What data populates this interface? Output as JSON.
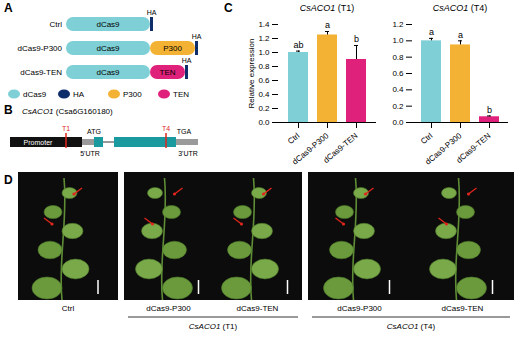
{
  "panel_labels": [
    "A",
    "B",
    "C",
    "D"
  ],
  "panel_A": {
    "constructs": [
      {
        "label": "Ctrl",
        "domains": [
          "dCas9"
        ],
        "tag": "HA"
      },
      {
        "label": "dCas9-P300",
        "domains": [
          "dCas9",
          "P300"
        ],
        "tag": "HA"
      },
      {
        "label": "dCas9-TEN",
        "domains": [
          "dCas9",
          "TEN"
        ],
        "tag": "HA"
      }
    ],
    "legend": [
      {
        "name": "dCas9",
        "color": "#7fd0d6"
      },
      {
        "name": "HA",
        "color": "#0d2d6b"
      },
      {
        "name": "P300",
        "color": "#f3b233"
      },
      {
        "name": "TEN",
        "color": "#e0217c"
      }
    ]
  },
  "panel_B": {
    "gene": "CsACO1",
    "gene_id": "(Csa6G160180)",
    "promoter": "Promoter",
    "targets": [
      "T1",
      "T4"
    ],
    "start_codon": "ATG",
    "stop_codon": "TGA",
    "utr5": "5'UTR",
    "utr3": "3'UTR"
  },
  "chart_data": [
    {
      "type": "bar",
      "title": "CsACO1 (T1)",
      "y_label": "Relative expression",
      "categories": [
        "Ctrl",
        "dCas9-P300",
        "dCas9-TEN"
      ],
      "values": [
        1.0,
        1.25,
        0.9
      ],
      "errors": [
        0.02,
        0.05,
        0.2
      ],
      "significance": [
        "ab",
        "a",
        "b"
      ],
      "colors": [
        "#7fd0d6",
        "#f3b233",
        "#e0217c"
      ],
      "ylim": [
        0,
        1.4
      ],
      "yticks": [
        {
          "value": 0,
          "label": "0.0"
        },
        0.2,
        0.4,
        0.6,
        0.8,
        {
          "value": 1,
          "label": "1.0"
        },
        1.2,
        1.4
      ]
    },
    {
      "type": "bar",
      "title": "CsACO1 (T4)",
      "categories": [
        "Ctrl",
        "dCas9-P300",
        "dCas9-TEN"
      ],
      "values": [
        1.0,
        0.95,
        0.07
      ],
      "errors": [
        0.03,
        0.05,
        0.01
      ],
      "significance": [
        "a",
        "a",
        "b"
      ],
      "colors": [
        "#7fd0d6",
        "#f3b233",
        "#e0217c"
      ],
      "ylim": [
        0,
        1.2
      ],
      "yticks": [
        {
          "value": 0,
          "label": "0.0"
        },
        0.2,
        0.4,
        0.6,
        0.8,
        {
          "value": 1,
          "label": "1.0"
        },
        1.2
      ]
    }
  ],
  "panel_D": {
    "photos": [
      {
        "labels": [
          "Ctrl"
        ]
      },
      {
        "labels": [
          "dCas9-P300",
          "dCas9-TEN"
        ],
        "group": "CsACO1 (T1)"
      },
      {
        "labels": [
          "dCas9-P300",
          "dCas9-TEN"
        ],
        "group": "CsACO1 (T4)"
      }
    ]
  }
}
